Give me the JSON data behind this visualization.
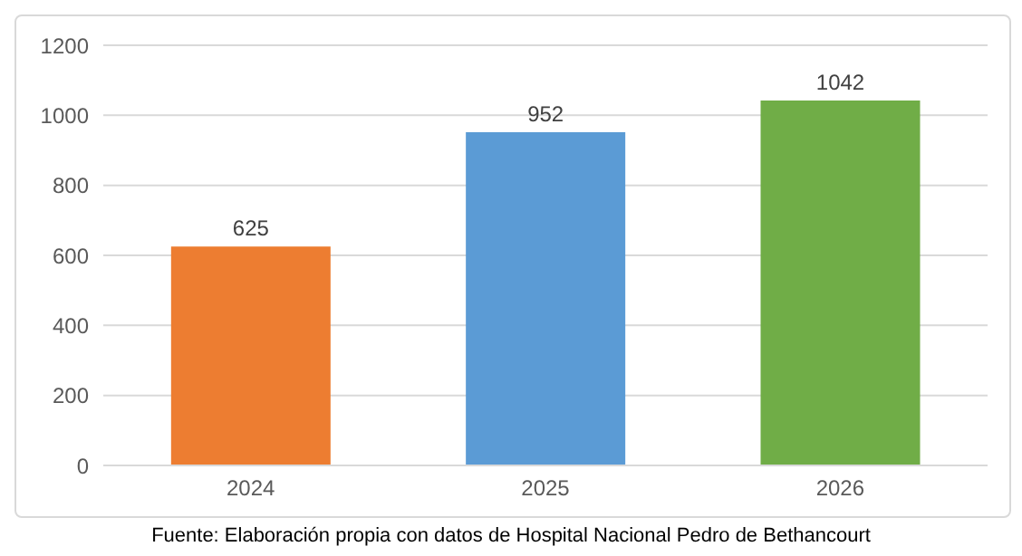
{
  "chart_data": {
    "type": "bar",
    "categories": [
      "2024",
      "2025",
      "2026"
    ],
    "values": [
      625,
      952,
      1042
    ],
    "colors": [
      "#ed7d31",
      "#5b9bd5",
      "#70ad47"
    ],
    "ylim": [
      0,
      1200
    ],
    "yticks": [
      0,
      200,
      400,
      600,
      800,
      1000,
      1200
    ],
    "grid": "y",
    "data_labels": true,
    "annotations": [
      "Fuente: Elaboración propia con datos de Hospital Nacional Pedro de Bethancourt"
    ]
  }
}
